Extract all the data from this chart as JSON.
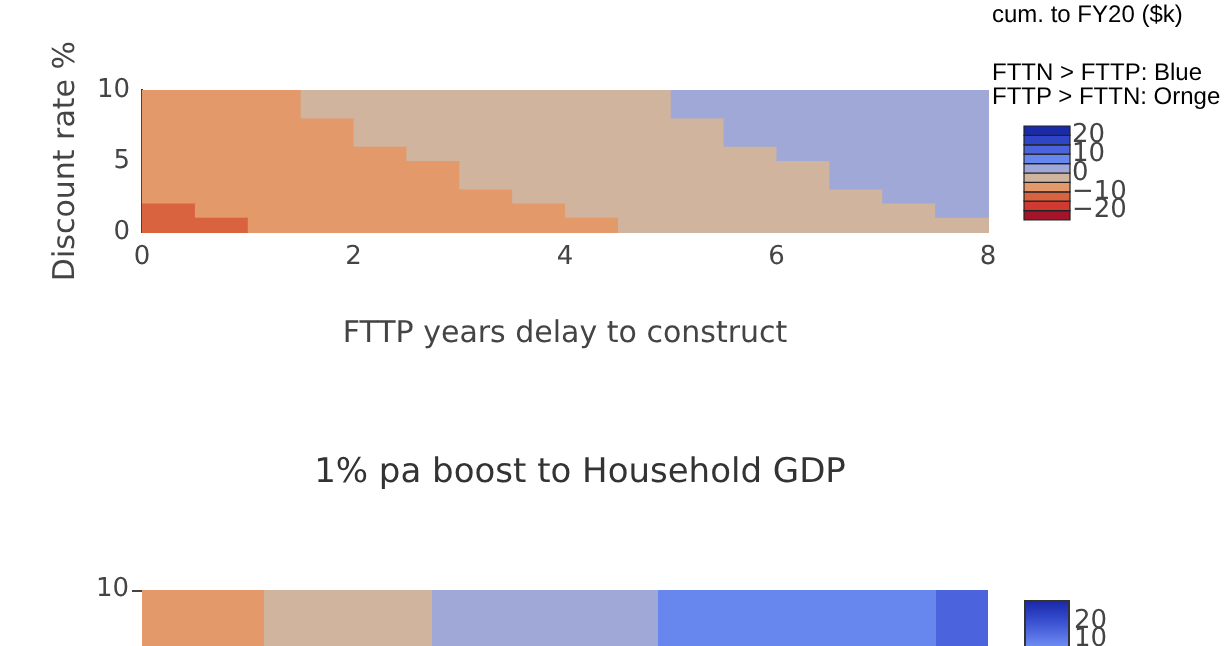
{
  "chart_data": [
    {
      "type": "heatmap",
      "xlabel": "FTTP years delay to construct",
      "ylabel": "Discount rate %",
      "annotations": [
        "cum. to FY20 ($k)",
        "FTTN > FTTP: Blue",
        "FTTP > FTTN: Ornge"
      ],
      "x": [
        0.25,
        0.75,
        1.25,
        1.75,
        2.25,
        2.75,
        3.25,
        3.75,
        4.25,
        4.75,
        5.25,
        5.75,
        6.25,
        6.75,
        7.25,
        7.75
      ],
      "y": [
        9.5,
        8.5,
        7.5,
        6.5,
        5.5,
        4.5,
        3.5,
        2.5,
        1.5,
        0.5
      ],
      "cells": [
        [
          -7.5,
          -7.5,
          -7.5,
          -2.5,
          -2.5,
          -2.5,
          -2.5,
          -2.5,
          -2.5,
          -2.5,
          2.5,
          2.5,
          2.5,
          2.5,
          2.5,
          2.5
        ],
        [
          -7.5,
          -7.5,
          -7.5,
          -2.5,
          -2.5,
          -2.5,
          -2.5,
          -2.5,
          -2.5,
          -2.5,
          2.5,
          2.5,
          2.5,
          2.5,
          2.5,
          2.5
        ],
        [
          -7.5,
          -7.5,
          -7.5,
          -7.5,
          -2.5,
          -2.5,
          -2.5,
          -2.5,
          -2.5,
          -2.5,
          -2.5,
          2.5,
          2.5,
          2.5,
          2.5,
          2.5
        ],
        [
          -7.5,
          -7.5,
          -7.5,
          -7.5,
          -2.5,
          -2.5,
          -2.5,
          -2.5,
          -2.5,
          -2.5,
          -2.5,
          2.5,
          2.5,
          2.5,
          2.5,
          2.5
        ],
        [
          -7.5,
          -7.5,
          -7.5,
          -7.5,
          -7.5,
          -2.5,
          -2.5,
          -2.5,
          -2.5,
          -2.5,
          -2.5,
          -2.5,
          2.5,
          2.5,
          2.5,
          2.5
        ],
        [
          -7.5,
          -7.5,
          -7.5,
          -7.5,
          -7.5,
          -7.5,
          -2.5,
          -2.5,
          -2.5,
          -2.5,
          -2.5,
          -2.5,
          -2.5,
          2.5,
          2.5,
          2.5
        ],
        [
          -7.5,
          -7.5,
          -7.5,
          -7.5,
          -7.5,
          -7.5,
          -2.5,
          -2.5,
          -2.5,
          -2.5,
          -2.5,
          -2.5,
          -2.5,
          2.5,
          2.5,
          2.5
        ],
        [
          -7.5,
          -7.5,
          -7.5,
          -7.5,
          -7.5,
          -7.5,
          -7.5,
          -2.5,
          -2.5,
          -2.5,
          -2.5,
          -2.5,
          -2.5,
          -2.5,
          2.5,
          2.5
        ],
        [
          -12.5,
          -7.5,
          -7.5,
          -7.5,
          -7.5,
          -7.5,
          -7.5,
          -7.5,
          -2.5,
          -2.5,
          -2.5,
          -2.5,
          -2.5,
          -2.5,
          -2.5,
          2.5
        ],
        [
          -12.5,
          -12.5,
          -7.5,
          -7.5,
          -7.5,
          -7.5,
          -7.5,
          -7.5,
          -7.5,
          -2.5,
          -2.5,
          -2.5,
          -2.5,
          -2.5,
          -2.5,
          -2.5
        ]
      ],
      "xlim": [
        0,
        8
      ],
      "xticks": [
        0,
        2,
        4,
        6,
        8
      ],
      "ylim": [
        0,
        10
      ],
      "yticks": [
        0,
        5,
        10
      ],
      "clim": [
        -25,
        25
      ],
      "cticks": [
        20,
        10,
        0,
        -10,
        -20
      ],
      "colors": [
        "#a3142a",
        "#d03a33",
        "#d9623f",
        "#e3996a",
        "#d0b49e",
        "#9fa8d6",
        "#6787ee",
        "#4b63dc",
        "#2f45c8",
        "#1b2aa8"
      ]
    },
    {
      "type": "other",
      "title": "1% pa boost to Household GDP",
      "annotations": [
        "10",
        "20",
        "10"
      ]
    }
  ]
}
